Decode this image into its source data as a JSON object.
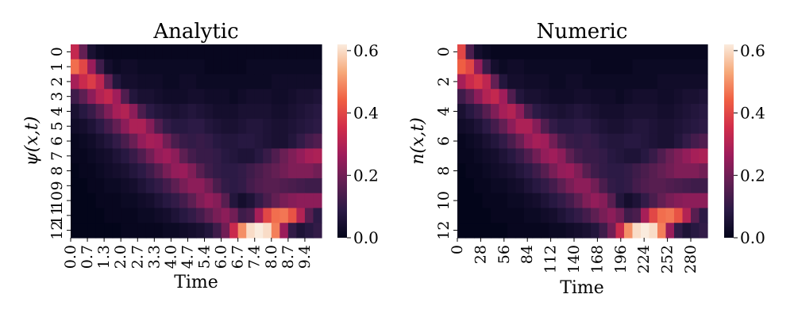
{
  "chart_data": [
    {
      "type": "heatmap",
      "title": "Analytic",
      "xlabel": "Time",
      "ylabel": "ψ(x,t)",
      "rows": 13,
      "cols": 30,
      "x_tick_labels": [
        "0.0",
        "0.7",
        "1.3",
        "2.0",
        "2.7",
        "3.3",
        "4.0",
        "4.7",
        "5.4",
        "6.0",
        "6.7",
        "7.4",
        "8.0",
        "8.7",
        "9.4"
      ],
      "y_tick_labels": [
        "0",
        "1",
        "2",
        "3",
        "4",
        "5",
        "6",
        "7",
        "8",
        "9",
        "10",
        "11",
        "12"
      ],
      "colorbar": {
        "min": 0.0,
        "max": 0.62,
        "ticks": [
          "0.0",
          "0.2",
          "0.4",
          "0.6"
        ],
        "tick_values": [
          0.0,
          0.2,
          0.4,
          0.6
        ]
      },
      "values": [
        [
          0.33,
          0.18,
          0.05,
          0.02,
          0.01,
          0.01,
          0.01,
          0.01,
          0.01,
          0.01,
          0.01,
          0.01,
          0.01,
          0.01,
          0.01,
          0.01,
          0.01,
          0.01,
          0.01,
          0.01,
          0.01,
          0.01,
          0.01,
          0.01,
          0.01,
          0.01,
          0.01,
          0.01,
          0.01,
          0.01
        ],
        [
          0.46,
          0.4,
          0.26,
          0.12,
          0.04,
          0.02,
          0.03,
          0.03,
          0.02,
          0.02,
          0.02,
          0.02,
          0.02,
          0.02,
          0.02,
          0.02,
          0.01,
          0.01,
          0.01,
          0.01,
          0.01,
          0.02,
          0.02,
          0.02,
          0.02,
          0.02,
          0.02,
          0.02,
          0.02,
          0.02
        ],
        [
          0.28,
          0.34,
          0.38,
          0.32,
          0.18,
          0.07,
          0.04,
          0.04,
          0.03,
          0.03,
          0.03,
          0.02,
          0.02,
          0.03,
          0.03,
          0.02,
          0.02,
          0.02,
          0.02,
          0.02,
          0.02,
          0.02,
          0.02,
          0.02,
          0.03,
          0.03,
          0.03,
          0.03,
          0.03,
          0.03
        ],
        [
          0.12,
          0.17,
          0.24,
          0.3,
          0.33,
          0.27,
          0.15,
          0.07,
          0.05,
          0.05,
          0.04,
          0.03,
          0.03,
          0.03,
          0.04,
          0.04,
          0.03,
          0.03,
          0.03,
          0.02,
          0.03,
          0.04,
          0.04,
          0.04,
          0.03,
          0.03,
          0.04,
          0.05,
          0.05,
          0.06
        ],
        [
          0.05,
          0.08,
          0.11,
          0.16,
          0.22,
          0.28,
          0.3,
          0.24,
          0.14,
          0.09,
          0.07,
          0.06,
          0.05,
          0.06,
          0.07,
          0.06,
          0.05,
          0.04,
          0.04,
          0.04,
          0.05,
          0.05,
          0.05,
          0.05,
          0.04,
          0.04,
          0.05,
          0.06,
          0.07,
          0.08
        ],
        [
          0.03,
          0.04,
          0.06,
          0.09,
          0.13,
          0.18,
          0.24,
          0.29,
          0.29,
          0.23,
          0.15,
          0.1,
          0.08,
          0.08,
          0.09,
          0.09,
          0.07,
          0.06,
          0.05,
          0.05,
          0.06,
          0.07,
          0.07,
          0.06,
          0.05,
          0.05,
          0.06,
          0.07,
          0.08,
          0.09
        ],
        [
          0.01,
          0.02,
          0.03,
          0.05,
          0.07,
          0.1,
          0.14,
          0.19,
          0.25,
          0.28,
          0.27,
          0.2,
          0.14,
          0.11,
          0.1,
          0.11,
          0.1,
          0.08,
          0.07,
          0.07,
          0.08,
          0.08,
          0.07,
          0.06,
          0.05,
          0.05,
          0.07,
          0.1,
          0.13,
          0.15
        ],
        [
          0.01,
          0.01,
          0.02,
          0.03,
          0.04,
          0.06,
          0.08,
          0.11,
          0.15,
          0.2,
          0.25,
          0.27,
          0.24,
          0.17,
          0.13,
          0.11,
          0.11,
          0.1,
          0.08,
          0.07,
          0.06,
          0.06,
          0.08,
          0.11,
          0.15,
          0.19,
          0.22,
          0.25,
          0.28,
          0.29
        ],
        [
          0.0,
          0.01,
          0.01,
          0.02,
          0.03,
          0.04,
          0.05,
          0.07,
          0.09,
          0.12,
          0.16,
          0.21,
          0.25,
          0.26,
          0.22,
          0.16,
          0.12,
          0.1,
          0.09,
          0.09,
          0.1,
          0.12,
          0.14,
          0.16,
          0.18,
          0.2,
          0.22,
          0.22,
          0.22,
          0.2
        ],
        [
          0.0,
          0.0,
          0.01,
          0.01,
          0.02,
          0.02,
          0.03,
          0.04,
          0.06,
          0.08,
          0.1,
          0.13,
          0.17,
          0.21,
          0.24,
          0.24,
          0.2,
          0.14,
          0.1,
          0.09,
          0.1,
          0.13,
          0.15,
          0.16,
          0.16,
          0.15,
          0.14,
          0.13,
          0.12,
          0.12
        ],
        [
          0.0,
          0.0,
          0.0,
          0.01,
          0.01,
          0.01,
          0.02,
          0.02,
          0.03,
          0.04,
          0.06,
          0.08,
          0.1,
          0.13,
          0.17,
          0.22,
          0.25,
          0.23,
          0.16,
          0.07,
          0.04,
          0.06,
          0.1,
          0.14,
          0.18,
          0.21,
          0.23,
          0.24,
          0.24,
          0.24
        ],
        [
          0.0,
          0.0,
          0.0,
          0.0,
          0.01,
          0.01,
          0.01,
          0.01,
          0.02,
          0.02,
          0.03,
          0.04,
          0.06,
          0.08,
          0.1,
          0.13,
          0.17,
          0.21,
          0.24,
          0.2,
          0.12,
          0.14,
          0.28,
          0.4,
          0.46,
          0.47,
          0.42,
          0.3,
          0.16,
          0.09
        ],
        [
          0.0,
          0.0,
          0.0,
          0.0,
          0.0,
          0.0,
          0.01,
          0.01,
          0.01,
          0.01,
          0.01,
          0.02,
          0.02,
          0.03,
          0.04,
          0.05,
          0.07,
          0.12,
          0.2,
          0.34,
          0.5,
          0.6,
          0.62,
          0.6,
          0.48,
          0.26,
          0.1,
          0.06,
          0.08,
          0.1
        ]
      ]
    },
    {
      "type": "heatmap",
      "title": "Numeric",
      "xlabel": "Time",
      "ylabel": "n(x,t)",
      "rows": 13,
      "cols": 30,
      "x_tick_labels": [
        "0",
        "28",
        "56",
        "84",
        "112",
        "140",
        "168",
        "196",
        "224",
        "252",
        "280"
      ],
      "y_tick_labels": [
        "0",
        "2",
        "4",
        "6",
        "8",
        "10",
        "12"
      ],
      "colorbar": {
        "min": 0.0,
        "max": 0.62,
        "ticks": [
          "0.0",
          "0.2",
          "0.4",
          "0.6"
        ],
        "tick_values": [
          0.0,
          0.2,
          0.4,
          0.6
        ]
      },
      "values": [
        [
          0.4,
          0.14,
          0.04,
          0.02,
          0.01,
          0.01,
          0.01,
          0.01,
          0.01,
          0.01,
          0.01,
          0.01,
          0.01,
          0.01,
          0.01,
          0.01,
          0.01,
          0.01,
          0.01,
          0.01,
          0.01,
          0.01,
          0.01,
          0.01,
          0.01,
          0.01,
          0.01,
          0.01,
          0.01,
          0.01
        ],
        [
          0.44,
          0.4,
          0.25,
          0.11,
          0.04,
          0.02,
          0.03,
          0.03,
          0.02,
          0.02,
          0.02,
          0.02,
          0.02,
          0.02,
          0.02,
          0.02,
          0.01,
          0.01,
          0.01,
          0.01,
          0.01,
          0.02,
          0.02,
          0.02,
          0.02,
          0.02,
          0.02,
          0.02,
          0.02,
          0.02
        ],
        [
          0.28,
          0.34,
          0.37,
          0.32,
          0.18,
          0.07,
          0.04,
          0.04,
          0.03,
          0.03,
          0.03,
          0.02,
          0.02,
          0.03,
          0.03,
          0.02,
          0.02,
          0.02,
          0.02,
          0.02,
          0.02,
          0.02,
          0.02,
          0.02,
          0.03,
          0.03,
          0.03,
          0.03,
          0.03,
          0.03
        ],
        [
          0.12,
          0.17,
          0.24,
          0.3,
          0.33,
          0.27,
          0.15,
          0.07,
          0.05,
          0.05,
          0.04,
          0.03,
          0.03,
          0.03,
          0.04,
          0.04,
          0.03,
          0.03,
          0.03,
          0.02,
          0.03,
          0.04,
          0.04,
          0.04,
          0.03,
          0.03,
          0.04,
          0.05,
          0.05,
          0.06
        ],
        [
          0.05,
          0.08,
          0.11,
          0.16,
          0.22,
          0.28,
          0.3,
          0.24,
          0.14,
          0.09,
          0.07,
          0.06,
          0.05,
          0.06,
          0.07,
          0.06,
          0.05,
          0.04,
          0.04,
          0.04,
          0.05,
          0.05,
          0.05,
          0.05,
          0.04,
          0.04,
          0.05,
          0.06,
          0.07,
          0.08
        ],
        [
          0.03,
          0.04,
          0.06,
          0.09,
          0.13,
          0.18,
          0.24,
          0.29,
          0.29,
          0.23,
          0.15,
          0.1,
          0.08,
          0.08,
          0.09,
          0.09,
          0.07,
          0.06,
          0.05,
          0.05,
          0.06,
          0.07,
          0.07,
          0.06,
          0.05,
          0.05,
          0.06,
          0.07,
          0.08,
          0.09
        ],
        [
          0.01,
          0.02,
          0.03,
          0.05,
          0.07,
          0.1,
          0.14,
          0.19,
          0.25,
          0.28,
          0.27,
          0.2,
          0.14,
          0.11,
          0.1,
          0.11,
          0.1,
          0.08,
          0.07,
          0.07,
          0.08,
          0.08,
          0.07,
          0.06,
          0.05,
          0.05,
          0.07,
          0.1,
          0.13,
          0.15
        ],
        [
          0.01,
          0.01,
          0.02,
          0.03,
          0.04,
          0.06,
          0.08,
          0.11,
          0.15,
          0.2,
          0.25,
          0.27,
          0.24,
          0.17,
          0.13,
          0.11,
          0.11,
          0.1,
          0.08,
          0.07,
          0.06,
          0.06,
          0.08,
          0.11,
          0.15,
          0.19,
          0.22,
          0.25,
          0.28,
          0.29
        ],
        [
          0.0,
          0.01,
          0.01,
          0.02,
          0.03,
          0.04,
          0.05,
          0.07,
          0.09,
          0.12,
          0.16,
          0.21,
          0.25,
          0.26,
          0.22,
          0.16,
          0.12,
          0.1,
          0.09,
          0.09,
          0.1,
          0.12,
          0.14,
          0.16,
          0.18,
          0.2,
          0.22,
          0.22,
          0.22,
          0.2
        ],
        [
          0.0,
          0.0,
          0.01,
          0.01,
          0.02,
          0.02,
          0.03,
          0.04,
          0.06,
          0.08,
          0.1,
          0.13,
          0.17,
          0.21,
          0.24,
          0.24,
          0.2,
          0.14,
          0.1,
          0.09,
          0.1,
          0.13,
          0.15,
          0.16,
          0.16,
          0.15,
          0.14,
          0.13,
          0.12,
          0.12
        ],
        [
          0.0,
          0.0,
          0.0,
          0.01,
          0.01,
          0.01,
          0.02,
          0.02,
          0.03,
          0.04,
          0.06,
          0.08,
          0.1,
          0.13,
          0.17,
          0.22,
          0.25,
          0.23,
          0.16,
          0.07,
          0.04,
          0.06,
          0.1,
          0.14,
          0.18,
          0.21,
          0.23,
          0.24,
          0.24,
          0.24
        ],
        [
          0.0,
          0.0,
          0.0,
          0.0,
          0.01,
          0.01,
          0.01,
          0.01,
          0.02,
          0.02,
          0.03,
          0.04,
          0.06,
          0.08,
          0.1,
          0.13,
          0.17,
          0.21,
          0.24,
          0.2,
          0.12,
          0.14,
          0.28,
          0.4,
          0.46,
          0.47,
          0.42,
          0.3,
          0.16,
          0.09
        ],
        [
          0.0,
          0.0,
          0.0,
          0.0,
          0.0,
          0.0,
          0.01,
          0.01,
          0.01,
          0.01,
          0.01,
          0.02,
          0.02,
          0.03,
          0.04,
          0.05,
          0.07,
          0.12,
          0.2,
          0.34,
          0.5,
          0.6,
          0.62,
          0.6,
          0.48,
          0.26,
          0.1,
          0.06,
          0.08,
          0.1
        ]
      ]
    }
  ],
  "colormap": [
    "#03051a",
    "#2b1a45",
    "#611f53",
    "#9e1c5b",
    "#d12d4a",
    "#f06043",
    "#f6a97a",
    "#faebdd"
  ]
}
